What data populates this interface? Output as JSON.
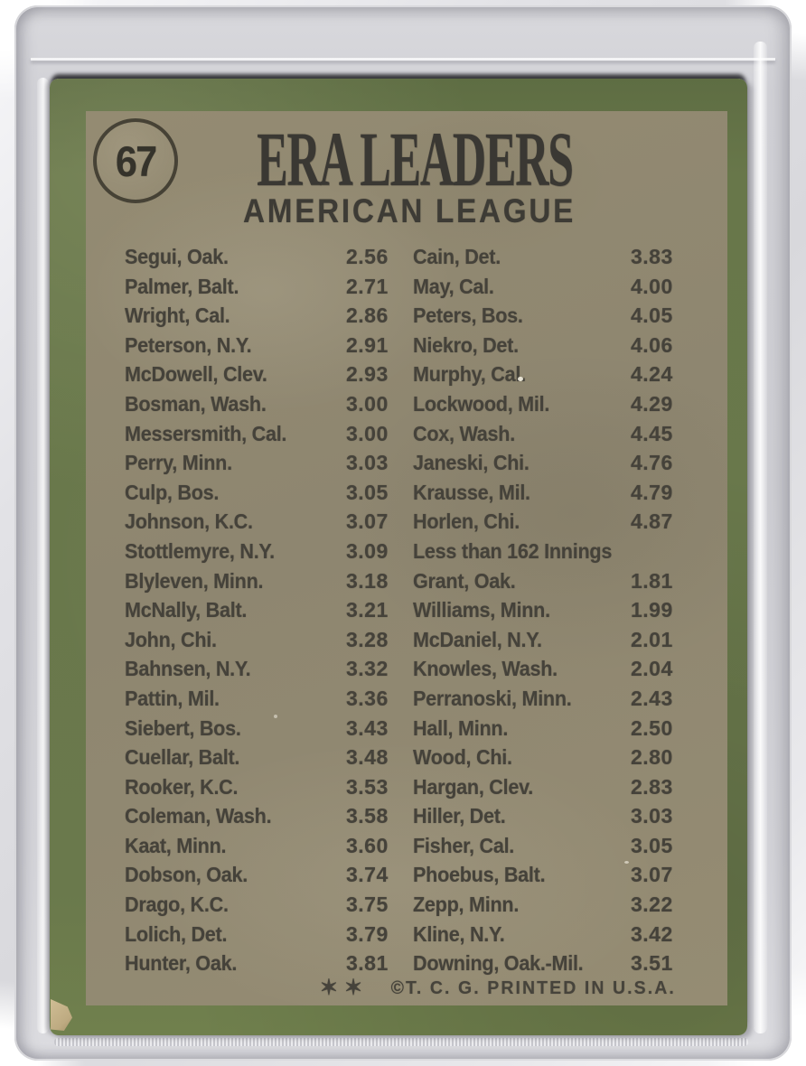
{
  "card": {
    "number": "67",
    "title": "ERA LEADERS",
    "subtitle": "AMERICAN LEAGUE",
    "footer": {
      "stars": "✶✶",
      "copyright": "©T. C. G. PRINTED IN U.S.A."
    },
    "colors": {
      "border_green": "#68774a",
      "panel_khaki": "#8f8770",
      "ink": "#45423a",
      "sleeve_gray": "#d2d2d7"
    },
    "columns": {
      "left": [
        {
          "name": "Segui, Oak.",
          "value": "2.56"
        },
        {
          "name": "Palmer, Balt.",
          "value": "2.71"
        },
        {
          "name": "Wright, Cal.",
          "value": "2.86"
        },
        {
          "name": "Peterson, N.Y.",
          "value": "2.91"
        },
        {
          "name": "McDowell, Clev.",
          "value": "2.93"
        },
        {
          "name": "Bosman, Wash.",
          "value": "3.00"
        },
        {
          "name": "Messersmith, Cal.",
          "value": "3.00"
        },
        {
          "name": "Perry, Minn.",
          "value": "3.03"
        },
        {
          "name": "Culp, Bos.",
          "value": "3.05"
        },
        {
          "name": "Johnson, K.C.",
          "value": "3.07"
        },
        {
          "name": "Stottlemyre, N.Y.",
          "value": "3.09"
        },
        {
          "name": "Blyleven, Minn.",
          "value": "3.18"
        },
        {
          "name": "McNally, Balt.",
          "value": "3.21"
        },
        {
          "name": "John, Chi.",
          "value": "3.28"
        },
        {
          "name": "Bahnsen, N.Y.",
          "value": "3.32"
        },
        {
          "name": "Pattin, Mil.",
          "value": "3.36"
        },
        {
          "name": "Siebert, Bos.",
          "value": "3.43"
        },
        {
          "name": "Cuellar, Balt.",
          "value": "3.48"
        },
        {
          "name": "Rooker, K.C.",
          "value": "3.53"
        },
        {
          "name": "Coleman, Wash.",
          "value": "3.58"
        },
        {
          "name": "Kaat, Minn.",
          "value": "3.60"
        },
        {
          "name": "Dobson, Oak.",
          "value": "3.74"
        },
        {
          "name": "Drago, K.C.",
          "value": "3.75"
        },
        {
          "name": "Lolich, Det.",
          "value": "3.79"
        },
        {
          "name": "Hunter, Oak.",
          "value": "3.81"
        }
      ],
      "right": [
        {
          "name": "Cain, Det.",
          "value": "3.83"
        },
        {
          "name": "May, Cal.",
          "value": "4.00"
        },
        {
          "name": "Peters, Bos.",
          "value": "4.05"
        },
        {
          "name": "Niekro, Det.",
          "value": "4.06"
        },
        {
          "name": "Murphy, Cal.",
          "value": "4.24"
        },
        {
          "name": "Lockwood, Mil.",
          "value": "4.29"
        },
        {
          "name": "Cox, Wash.",
          "value": "4.45"
        },
        {
          "name": "Janeski, Chi.",
          "value": "4.76"
        },
        {
          "name": "Krausse, Mil.",
          "value": "4.79"
        },
        {
          "name": "Horlen, Chi.",
          "value": "4.87"
        },
        {
          "header": "Less than 162 Innings"
        },
        {
          "name": "Grant, Oak.",
          "value": "1.81"
        },
        {
          "name": "Williams, Minn.",
          "value": "1.99"
        },
        {
          "name": "McDaniel, N.Y.",
          "value": "2.01"
        },
        {
          "name": "Knowles, Wash.",
          "value": "2.04"
        },
        {
          "name": "Perranoski, Minn.",
          "value": "2.43"
        },
        {
          "name": "Hall, Minn.",
          "value": "2.50"
        },
        {
          "name": "Wood, Chi.",
          "value": "2.80"
        },
        {
          "name": "Hargan, Clev.",
          "value": "2.83"
        },
        {
          "name": "Hiller, Det.",
          "value": "3.03"
        },
        {
          "name": "Fisher, Cal.",
          "value": "3.05"
        },
        {
          "name": "Phoebus, Balt.",
          "value": "3.07"
        },
        {
          "name": "Zepp, Minn.",
          "value": "3.22"
        },
        {
          "name": "Kline, N.Y.",
          "value": "3.42"
        },
        {
          "name": "Downing, Oak.-Mil.",
          "value": "3.51"
        }
      ]
    }
  }
}
